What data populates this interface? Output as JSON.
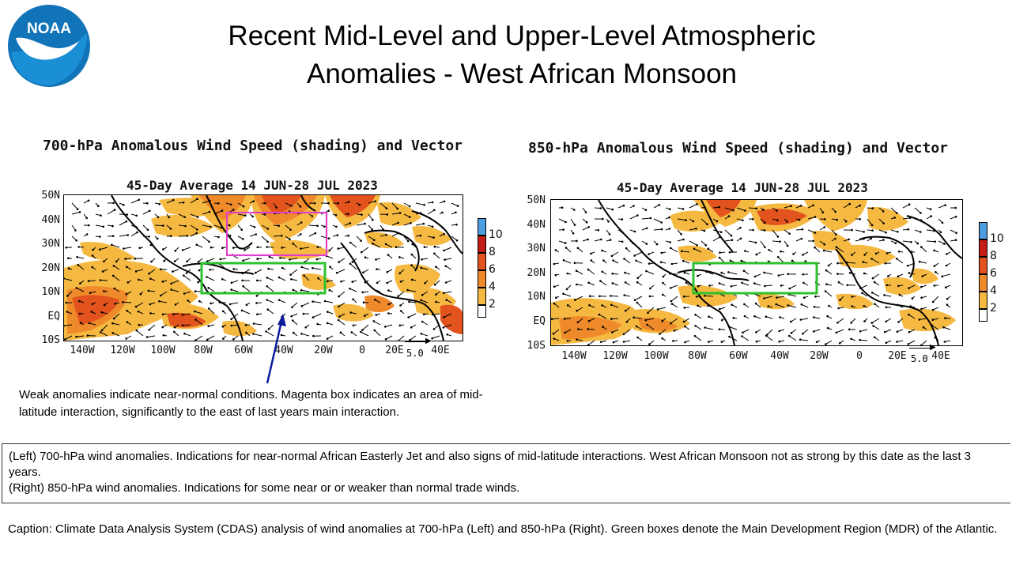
{
  "logo": {
    "text": "NOAA",
    "icon": "noaa-logo"
  },
  "slide": {
    "title_line1": "Recent Mid-Level and Upper-Level Atmospheric",
    "title_line2": "Anomalies - West African Monsoon"
  },
  "left_panel": {
    "title": "700-hPa Anomalous Wind Speed (shading) and Vector",
    "subtitle": "45-Day Average 14 JUN-28 JUL 2023",
    "lat_labels": [
      "50N",
      "40N",
      "30N",
      "20N",
      "10N",
      "EQ",
      "10S"
    ],
    "lon_labels": [
      "140W",
      "120W",
      "100W",
      "80W",
      "60W",
      "40W",
      "20W",
      "0",
      "20E",
      "40E"
    ],
    "ref_vector": "5.0",
    "legend": [
      "10",
      "8",
      "6",
      "4",
      "2"
    ]
  },
  "right_panel": {
    "title": "850-hPa Anomalous Wind Speed (shading) and Vector",
    "subtitle": "45-Day Average 14 JUN-28 JUL 2023",
    "lat_labels": [
      "50N",
      "40N",
      "30N",
      "20N",
      "10N",
      "EQ",
      "10S"
    ],
    "lon_labels": [
      "140W",
      "120W",
      "100W",
      "80W",
      "60W",
      "40W",
      "20W",
      "0",
      "20E",
      "40E"
    ],
    "ref_vector": "5.0",
    "legend": [
      "10",
      "8",
      "6",
      "4",
      "2"
    ]
  },
  "colors": {
    "c2": "#f5b942",
    "c4": "#ee8a2a",
    "c6": "#e2531e",
    "c8": "#c41c16",
    "c10": "#4c9ee0",
    "magenta_box": "#e040c8",
    "green_box": "#2dc12d",
    "arrow": "#0a1a9c"
  },
  "note": "Weak anomalies indicate near-normal conditions.  Magenta box indicates an area of mid-latitude interaction, significantly to the east of last years main interaction.",
  "summary": {
    "left": "(Left) 700-hPa wind anomalies.  Indications for near-normal African Easterly Jet and also signs of mid-latitude interactions. West African Monsoon not as strong by this date as the last 3 years.",
    "right": "(Right) 850-hPa wind anomalies. Indications for some near or or weaker than normal trade winds."
  },
  "caption": "Caption: Climate Data Analysis System (CDAS) analysis of wind anomalies at 700-hPa (Left) and 850-hPa (Right). Green boxes denote the Main Development Region (MDR) of the Atlantic."
}
